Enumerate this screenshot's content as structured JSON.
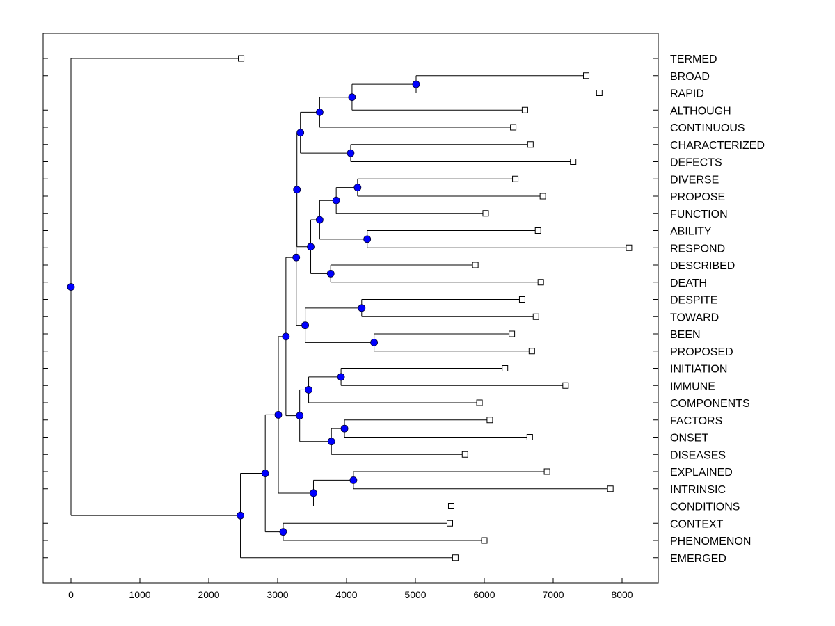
{
  "chart_data": {
    "type": "dendrogram",
    "title": "",
    "xlabel": "",
    "ylabel": "",
    "xlim": [
      -400,
      8500
    ],
    "x_ticks": [
      0,
      1000,
      2000,
      3000,
      4000,
      5000,
      6000,
      7000,
      8000
    ],
    "x_tick_labels": [
      "0",
      "1000",
      "2000",
      "3000",
      "4000",
      "5000",
      "6000",
      "7000",
      "8000"
    ],
    "colors": {
      "node": "#0000ff",
      "line": "#000000",
      "leaf_marker": "#ffffff"
    },
    "leaves": [
      {
        "label": "TERMED",
        "x": 2470
      },
      {
        "label": "BROAD",
        "x": 7480
      },
      {
        "label": "RAPID",
        "x": 7670
      },
      {
        "label": "ALTHOUGH",
        "x": 6590
      },
      {
        "label": "CONTINUOUS",
        "x": 6420
      },
      {
        "label": "CHARACTERIZED",
        "x": 6670
      },
      {
        "label": "DEFECTS",
        "x": 7290
      },
      {
        "label": "DIVERSE",
        "x": 6450
      },
      {
        "label": "PROPOSE",
        "x": 6850
      },
      {
        "label": "FUNCTION",
        "x": 6020
      },
      {
        "label": "ABILITY",
        "x": 6780
      },
      {
        "label": "RESPOND",
        "x": 8100
      },
      {
        "label": "DESCRIBED",
        "x": 5870
      },
      {
        "label": "DEATH",
        "x": 6820
      },
      {
        "label": "DESPITE",
        "x": 6550
      },
      {
        "label": "TOWARD",
        "x": 6750
      },
      {
        "label": "BEEN",
        "x": 6400
      },
      {
        "label": "PROPOSED",
        "x": 6690
      },
      {
        "label": "INITIATION",
        "x": 6300
      },
      {
        "label": "IMMUNE",
        "x": 7180
      },
      {
        "label": "COMPONENTS",
        "x": 5930
      },
      {
        "label": "FACTORS",
        "x": 6080
      },
      {
        "label": "ONSET",
        "x": 6660
      },
      {
        "label": "DISEASES",
        "x": 5720
      },
      {
        "label": "EXPLAINED",
        "x": 6910
      },
      {
        "label": "INTRINSIC",
        "x": 7830
      },
      {
        "label": "CONDITIONS",
        "x": 5520
      },
      {
        "label": "CONTEXT",
        "x": 5500
      },
      {
        "label": "PHENOMENON",
        "x": 6000
      },
      {
        "label": "EMERGED",
        "x": 5580
      }
    ],
    "merges": [
      {
        "id": "m1",
        "x": 5010,
        "children": [
          "L1",
          "L2"
        ]
      },
      {
        "id": "m2",
        "x": 4080,
        "children": [
          "m1",
          "L3"
        ]
      },
      {
        "id": "m3",
        "x": 3610,
        "children": [
          "m2",
          "L4"
        ]
      },
      {
        "id": "m4",
        "x": 4060,
        "children": [
          "L5",
          "L6"
        ]
      },
      {
        "id": "m5",
        "x": 3330,
        "children": [
          "m3",
          "m4"
        ]
      },
      {
        "id": "m6",
        "x": 4160,
        "children": [
          "L7",
          "L8"
        ]
      },
      {
        "id": "m7",
        "x": 3850,
        "children": [
          "m6",
          "L9"
        ]
      },
      {
        "id": "m8",
        "x": 4300,
        "children": [
          "L10",
          "L11"
        ]
      },
      {
        "id": "m9",
        "x": 3610,
        "children": [
          "m7",
          "m8"
        ]
      },
      {
        "id": "m10",
        "x": 3770,
        "children": [
          "L12",
          "L13"
        ]
      },
      {
        "id": "m11",
        "x": 3480,
        "children": [
          "m9",
          "m10"
        ]
      },
      {
        "id": "m12",
        "x": 3280,
        "children": [
          "m5",
          "m11"
        ]
      },
      {
        "id": "m13",
        "x": 4220,
        "children": [
          "L14",
          "L15"
        ]
      },
      {
        "id": "m14",
        "x": 4400,
        "children": [
          "L16",
          "L17"
        ]
      },
      {
        "id": "m15",
        "x": 3400,
        "children": [
          "m13",
          "m14"
        ]
      },
      {
        "id": "m16",
        "x": 3270,
        "children": [
          "m12",
          "m15"
        ]
      },
      {
        "id": "m17",
        "x": 3920,
        "children": [
          "L18",
          "L19"
        ]
      },
      {
        "id": "m18",
        "x": 3450,
        "children": [
          "m17",
          "L20"
        ]
      },
      {
        "id": "m19",
        "x": 3970,
        "children": [
          "L21",
          "L22"
        ]
      },
      {
        "id": "m20",
        "x": 3780,
        "children": [
          "m19",
          "L23"
        ]
      },
      {
        "id": "m21",
        "x": 3320,
        "children": [
          "m18",
          "m20"
        ]
      },
      {
        "id": "m22",
        "x": 3120,
        "children": [
          "m16",
          "m21"
        ]
      },
      {
        "id": "m23",
        "x": 4100,
        "children": [
          "L24",
          "L25"
        ]
      },
      {
        "id": "m24",
        "x": 3520,
        "children": [
          "m23",
          "L26"
        ]
      },
      {
        "id": "m25",
        "x": 3010,
        "children": [
          "m22",
          "m24"
        ]
      },
      {
        "id": "m26",
        "x": 3080,
        "children": [
          "L27",
          "L28"
        ]
      },
      {
        "id": "m27",
        "x": 2820,
        "children": [
          "m25",
          "m26"
        ]
      },
      {
        "id": "m28",
        "x": 2460,
        "children": [
          "m27",
          "L29"
        ]
      },
      {
        "id": "m29",
        "x": 0,
        "children": [
          "L0",
          "m28"
        ]
      }
    ]
  }
}
